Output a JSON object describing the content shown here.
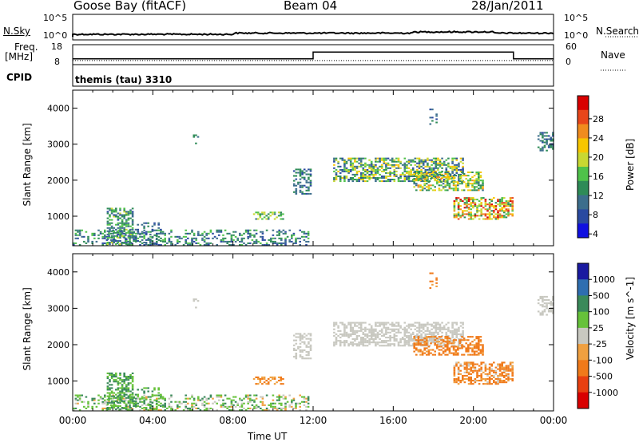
{
  "header": {
    "station": "Goose Bay (fitACF)",
    "beam": "Beam 04",
    "date": "28/Jan/2011"
  },
  "noise_panel": {
    "left_label": "N.Sky",
    "right_label": "N.Search",
    "left_ticks": [
      "10^5",
      "10^0"
    ],
    "right_ticks": [
      "10^5",
      "10^0"
    ]
  },
  "freq_panel": {
    "left_label_1": "Freq.",
    "left_label_2": "[MHz]",
    "right_label": "Nave",
    "left_ticks": [
      "18",
      "8"
    ],
    "right_ticks": [
      "60",
      "0"
    ]
  },
  "cpid": {
    "label": "CPID",
    "text": "themis (tau) 3310"
  },
  "axes": {
    "ylabel": "Slant Range [km]",
    "xlabel": "Time UT",
    "x_ticks": [
      "00:00",
      "04:00",
      "08:00",
      "12:00",
      "16:00",
      "20:00",
      "00:00"
    ],
    "y_ticks": [
      "1000",
      "2000",
      "3000",
      "4000"
    ]
  },
  "power_scale": {
    "label": "Power [dB]",
    "ticks": [
      "28",
      "24",
      "20",
      "16",
      "12",
      "8",
      "4"
    ],
    "colors": [
      "#d90000",
      "#e8461a",
      "#f08c1e",
      "#f7c600",
      "#c8d832",
      "#4fc24a",
      "#2e8b57",
      "#3c6e8c",
      "#2a4aa0",
      "#1010e0"
    ]
  },
  "velocity_scale": {
    "label": "Velocity [m s^-1]",
    "ticks": [
      "1000",
      "500",
      "100",
      "25",
      "-25",
      "-100",
      "-500",
      "-1000"
    ],
    "colors": [
      "#1a1aa0",
      "#2e6eb0",
      "#3a8a5a",
      "#66c23a",
      "#c8c8c0",
      "#f0a040",
      "#f07a1a",
      "#e84010",
      "#d90000"
    ]
  },
  "chart_data": {
    "type": "heatmap",
    "x_range_hours": [
      0,
      24
    ],
    "y_range_km": [
      180,
      4500
    ],
    "gate_spacing_km": 45,
    "power_scale_db": [
      0,
      30
    ],
    "velocity_scale_ms": [
      -1000,
      1000
    ],
    "freq_mhz": [
      {
        "x": [
          0,
          12.0
        ],
        "freq": 10.5
      },
      {
        "x": [
          12.0,
          22.0
        ],
        "freq": 14.5
      },
      {
        "x": [
          22.0,
          24.0
        ],
        "freq": 10.5
      }
    ],
    "nave": 9,
    "echo_regions": [
      {
        "t0": 0.0,
        "t1": 11.8,
        "r0": 180,
        "r1": 600,
        "density": 0.35,
        "power": [
          4,
          14
        ],
        "vel": [
          -50,
          150
        ]
      },
      {
        "t0": 1.7,
        "t1": 3.0,
        "r0": 200,
        "r1": 1200,
        "density": 0.55,
        "power": [
          5,
          16
        ],
        "vel": [
          25,
          200
        ]
      },
      {
        "t0": 3.0,
        "t1": 4.5,
        "r0": 200,
        "r1": 800,
        "density": 0.3,
        "power": [
          4,
          10
        ],
        "vel": [
          25,
          150
        ]
      },
      {
        "t0": 6.0,
        "t1": 6.3,
        "r0": 3000,
        "r1": 3300,
        "density": 0.25,
        "power": [
          4,
          10
        ],
        "vel": [
          -25,
          25
        ]
      },
      {
        "t0": 9.0,
        "t1": 10.5,
        "r0": 900,
        "r1": 1100,
        "density": 0.45,
        "power": [
          8,
          18
        ],
        "vel": [
          -200,
          -50
        ]
      },
      {
        "t0": 11.0,
        "t1": 11.9,
        "r0": 1600,
        "r1": 2300,
        "density": 0.45,
        "power": [
          4,
          12
        ],
        "vel": [
          -25,
          25
        ]
      },
      {
        "t0": 13.0,
        "t1": 19.5,
        "r0": 1950,
        "r1": 2600,
        "density": 0.6,
        "power": [
          4,
          20
        ],
        "vel": [
          -25,
          25
        ]
      },
      {
        "t0": 17.0,
        "t1": 20.5,
        "r0": 1700,
        "r1": 2200,
        "density": 0.5,
        "power": [
          8,
          22
        ],
        "vel": [
          -500,
          -25
        ]
      },
      {
        "t0": 19.0,
        "t1": 22.0,
        "r0": 900,
        "r1": 1500,
        "density": 0.55,
        "power": [
          10,
          30
        ],
        "vel": [
          -300,
          25
        ]
      },
      {
        "t0": 23.2,
        "t1": 24.0,
        "r0": 2800,
        "r1": 3300,
        "density": 0.5,
        "power": [
          4,
          12
        ],
        "vel": [
          -25,
          25
        ]
      },
      {
        "t0": 17.8,
        "t1": 18.2,
        "r0": 3400,
        "r1": 3950,
        "density": 0.3,
        "power": [
          4,
          10
        ],
        "vel": [
          -500,
          -25
        ]
      }
    ]
  }
}
